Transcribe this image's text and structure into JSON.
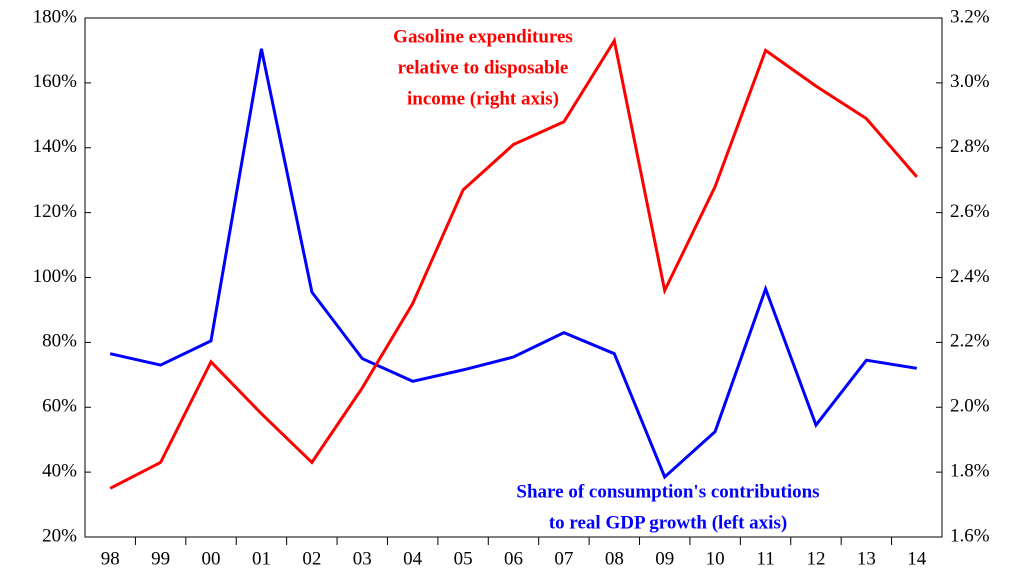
{
  "chart_data": {
    "type": "line",
    "categories": [
      "98",
      "99",
      "00",
      "01",
      "02",
      "03",
      "04",
      "05",
      "06",
      "07",
      "08",
      "09",
      "10",
      "11",
      "12",
      "13",
      "14"
    ],
    "series": [
      {
        "name": "Share of consumption's contributions to real GDP growth (left axis)",
        "color": "#0000ff",
        "axis": "y",
        "values": [
          76.5,
          73,
          80.5,
          170.5,
          95.5,
          75,
          68,
          71.5,
          75.5,
          83,
          76.5,
          38.5,
          52.5,
          96.5,
          54.5,
          74.5,
          72
        ]
      },
      {
        "name": "Gasoline expenditures relative to disposable income (right axis)",
        "color": "#ff0000",
        "axis": "y2",
        "values": [
          1.75,
          1.83,
          2.14,
          1.98,
          1.83,
          2.06,
          2.32,
          2.67,
          2.81,
          2.88,
          3.13,
          2.36,
          2.68,
          3.1,
          2.99,
          2.89,
          2.71
        ]
      }
    ],
    "annotations": [
      {
        "lines": [
          "Gasoline expenditures",
          "relative to disposable",
          "income (right axis)"
        ],
        "color": "#ff0000"
      },
      {
        "lines": [
          "Share of consumption's contributions",
          "to real GDP growth (left axis)"
        ],
        "color": "#0000ff"
      }
    ],
    "ylim": [
      20,
      180
    ],
    "yticks": [
      {
        "value": 20,
        "label": "20%"
      },
      {
        "value": 40,
        "label": "40%"
      },
      {
        "value": 60,
        "label": "60%"
      },
      {
        "value": 80,
        "label": "80%"
      },
      {
        "value": 100,
        "label": "100%"
      },
      {
        "value": 120,
        "label": "120%"
      },
      {
        "value": 140,
        "label": "140%"
      },
      {
        "value": 160,
        "label": "160%"
      },
      {
        "value": 180,
        "label": "180%"
      }
    ],
    "y2lim": [
      1.6,
      3.2
    ],
    "y2ticks": [
      {
        "value": 1.6,
        "label": "1.6%"
      },
      {
        "value": 1.8,
        "label": "1.8%"
      },
      {
        "value": 2.0,
        "label": "2.0%"
      },
      {
        "value": 2.2,
        "label": "2.2%"
      },
      {
        "value": 2.4,
        "label": "2.4%"
      },
      {
        "value": 2.6,
        "label": "2.6%"
      },
      {
        "value": 2.8,
        "label": "2.8%"
      },
      {
        "value": 3.0,
        "label": "3.0%"
      },
      {
        "value": 3.2,
        "label": "3.2%"
      }
    ]
  }
}
